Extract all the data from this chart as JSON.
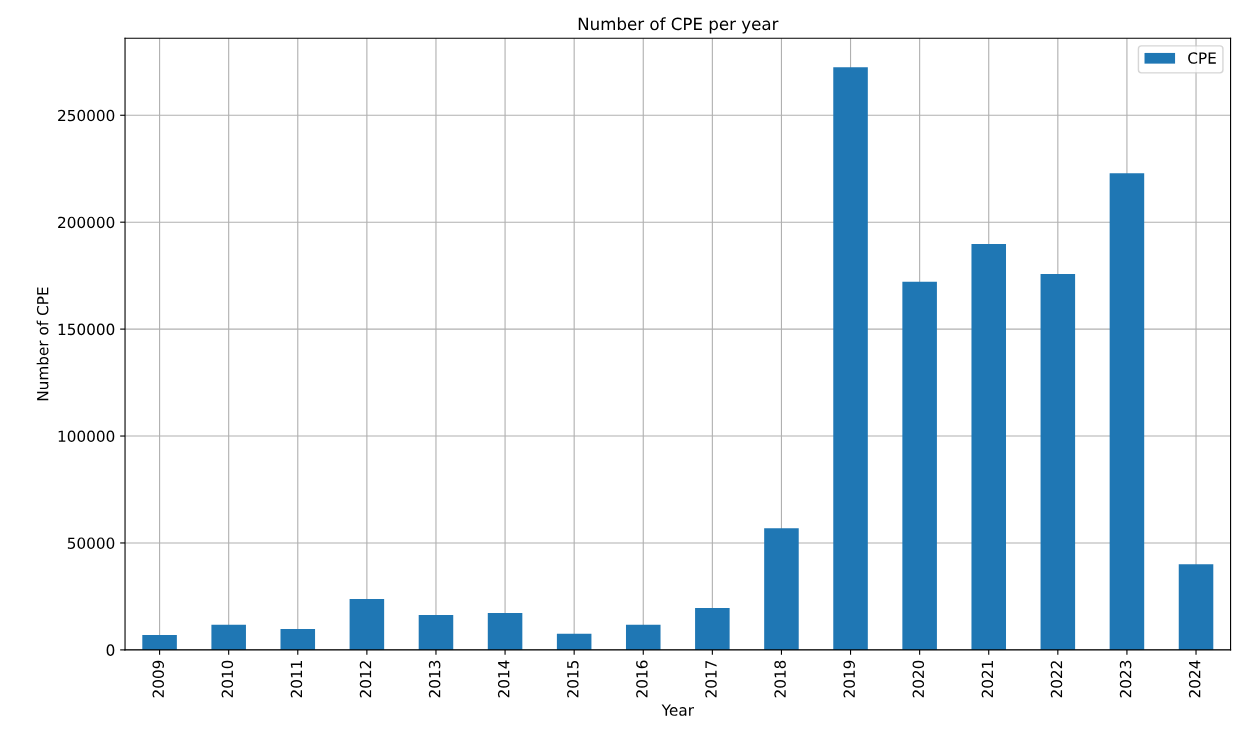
{
  "chart_data": {
    "type": "bar",
    "title": "Number of CPE per year",
    "xlabel": "Year",
    "ylabel": "Number of CPE",
    "categories": [
      "2009",
      "2010",
      "2011",
      "2012",
      "2013",
      "2014",
      "2015",
      "2016",
      "2017",
      "2018",
      "2019",
      "2020",
      "2021",
      "2022",
      "2023",
      "2024"
    ],
    "series": [
      {
        "name": "CPE",
        "color": "#1f77b4",
        "values": [
          7000,
          11700,
          9800,
          23800,
          16300,
          17300,
          7500,
          11700,
          19600,
          56900,
          272400,
          172100,
          189800,
          175800,
          222900,
          40100
        ]
      }
    ],
    "ylim": [
      0,
      286000
    ],
    "yticks": [
      0,
      50000,
      100000,
      150000,
      200000,
      250000
    ],
    "grid": true,
    "legend": "top right"
  }
}
